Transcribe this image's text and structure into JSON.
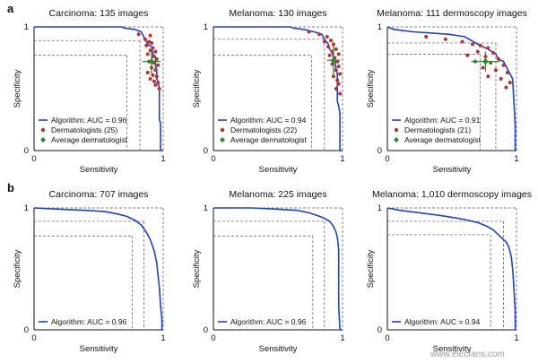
{
  "figure": {
    "row_labels": [
      "a",
      "b"
    ],
    "watermark": "www.elecfans.com"
  },
  "chart_data": [
    {
      "type": "line",
      "title": "Carcinoma: 135 images",
      "xlabel": "Sensitivity",
      "ylabel": "Specificity",
      "x_ticks": [
        "0",
        "1"
      ],
      "y_ticks": [
        "0",
        "1"
      ],
      "xlim": [
        0,
        1
      ],
      "ylim": [
        0,
        1
      ],
      "legend": {
        "position": "bottom-left",
        "algorithm": "Algorithm: AUC = 0.96",
        "dermatologists": "Dermatologists (25)",
        "average": "Average dermatologist"
      },
      "algorithm_curve": [
        [
          0,
          1
        ],
        [
          0.68,
          1
        ],
        [
          0.7,
          0.99
        ],
        [
          0.78,
          0.98
        ],
        [
          0.83,
          0.96
        ],
        [
          0.86,
          0.9
        ],
        [
          0.88,
          0.86
        ],
        [
          0.91,
          0.84
        ],
        [
          0.92,
          0.78
        ],
        [
          0.94,
          0.76
        ],
        [
          0.94,
          0.68
        ],
        [
          0.95,
          0.66
        ],
        [
          0.95,
          0.58
        ],
        [
          0.96,
          0.56
        ],
        [
          0.97,
          0.5
        ],
        [
          0.97,
          0.25
        ],
        [
          0.98,
          0.22
        ],
        [
          0.98,
          0
        ],
        [
          1,
          0
        ]
      ],
      "reference_points": [
        [
          0.72,
          0.77
        ],
        [
          0.82,
          0.89
        ]
      ],
      "dermatologists": [
        [
          0.81,
          0.94
        ],
        [
          0.9,
          0.93
        ],
        [
          0.86,
          0.9
        ],
        [
          0.89,
          0.88
        ],
        [
          0.91,
          0.87
        ],
        [
          0.87,
          0.85
        ],
        [
          0.92,
          0.83
        ],
        [
          0.9,
          0.81
        ],
        [
          0.94,
          0.8
        ],
        [
          0.88,
          0.78
        ],
        [
          0.92,
          0.76
        ],
        [
          0.95,
          0.74
        ],
        [
          0.89,
          0.72
        ],
        [
          0.93,
          0.71
        ],
        [
          0.96,
          0.69
        ],
        [
          0.91,
          0.67
        ],
        [
          0.94,
          0.65
        ],
        [
          0.88,
          0.63
        ],
        [
          0.92,
          0.61
        ],
        [
          0.95,
          0.6
        ],
        [
          0.9,
          0.58
        ],
        [
          0.93,
          0.56
        ],
        [
          0.96,
          0.55
        ],
        [
          0.94,
          0.53
        ],
        [
          0.97,
          0.5
        ]
      ],
      "average_dermatologist": {
        "x": 0.91,
        "y": 0.72,
        "x_err": 0.07,
        "y_err": 0.1
      }
    },
    {
      "type": "line",
      "title": "Melanoma: 130 images",
      "xlabel": "Sensitivity",
      "ylabel": "Specificity",
      "x_ticks": [
        "0",
        "1"
      ],
      "y_ticks": [
        "0",
        "1"
      ],
      "xlim": [
        0,
        1
      ],
      "ylim": [
        0,
        1
      ],
      "legend": {
        "position": "bottom-left",
        "algorithm": "Algorithm: AUC = 0.94",
        "dermatologists": "Dermatologists (22)",
        "average": "Average dermatologist"
      },
      "algorithm_curve": [
        [
          0,
          1
        ],
        [
          0.6,
          1
        ],
        [
          0.62,
          0.99
        ],
        [
          0.7,
          0.98
        ],
        [
          0.78,
          0.96
        ],
        [
          0.84,
          0.94
        ],
        [
          0.86,
          0.9
        ],
        [
          0.89,
          0.86
        ],
        [
          0.9,
          0.82
        ],
        [
          0.92,
          0.8
        ],
        [
          0.93,
          0.74
        ],
        [
          0.94,
          0.72
        ],
        [
          0.95,
          0.66
        ],
        [
          0.96,
          0.62
        ],
        [
          0.96,
          0.4
        ],
        [
          0.97,
          0.36
        ],
        [
          0.98,
          0.3
        ],
        [
          0.98,
          0
        ],
        [
          1,
          0
        ]
      ],
      "reference_points": [
        [
          0.76,
          0.77
        ],
        [
          0.86,
          0.9
        ]
      ],
      "dermatologists": [
        [
          0.74,
          0.96
        ],
        [
          0.82,
          0.94
        ],
        [
          0.88,
          0.92
        ],
        [
          0.91,
          0.89
        ],
        [
          0.86,
          0.88
        ],
        [
          0.93,
          0.86
        ],
        [
          0.89,
          0.84
        ],
        [
          0.95,
          0.82
        ],
        [
          0.92,
          0.8
        ],
        [
          0.97,
          0.78
        ],
        [
          0.9,
          0.77
        ],
        [
          0.94,
          0.75
        ],
        [
          0.96,
          0.72
        ],
        [
          0.92,
          0.7
        ],
        [
          0.97,
          0.68
        ],
        [
          0.95,
          0.65
        ],
        [
          0.98,
          0.62
        ],
        [
          0.93,
          0.6
        ],
        [
          0.96,
          0.57
        ],
        [
          0.97,
          0.54
        ],
        [
          0.95,
          0.5
        ],
        [
          0.98,
          0.46
        ]
      ],
      "average_dermatologist": {
        "x": 0.93,
        "y": 0.73,
        "x_err": 0.05,
        "y_err": 0.12
      }
    },
    {
      "type": "line",
      "title": "Melanoma: 111 dermoscopy images",
      "xlabel": "Sensitivity",
      "ylabel": "Specificity",
      "x_ticks": [
        "0",
        "1"
      ],
      "y_ticks": [
        "0",
        "1"
      ],
      "xlim": [
        0,
        1
      ],
      "ylim": [
        0,
        1
      ],
      "legend": {
        "position": "bottom-left",
        "algorithm": "Algorithm: AUC = 0.91",
        "dermatologists": "Dermatologists (21)",
        "average": "Average dermatologist"
      },
      "algorithm_curve": [
        [
          0,
          1
        ],
        [
          0.05,
          0.98
        ],
        [
          0.2,
          0.96
        ],
        [
          0.35,
          0.95
        ],
        [
          0.48,
          0.94
        ],
        [
          0.6,
          0.92
        ],
        [
          0.7,
          0.86
        ],
        [
          0.78,
          0.82
        ],
        [
          0.84,
          0.78
        ],
        [
          0.86,
          0.74
        ],
        [
          0.9,
          0.72
        ],
        [
          0.92,
          0.68
        ],
        [
          0.95,
          0.62
        ],
        [
          0.97,
          0.58
        ],
        [
          0.98,
          0.4
        ],
        [
          0.99,
          0.2
        ],
        [
          0.99,
          0
        ],
        [
          1,
          0
        ]
      ],
      "reference_points": [
        [
          0.72,
          0.78
        ],
        [
          0.84,
          0.87
        ]
      ],
      "dermatologists": [
        [
          0.3,
          0.92
        ],
        [
          0.45,
          0.9
        ],
        [
          0.58,
          0.88
        ],
        [
          0.66,
          0.86
        ],
        [
          0.72,
          0.85
        ],
        [
          0.78,
          0.83
        ],
        [
          0.7,
          0.8
        ],
        [
          0.82,
          0.79
        ],
        [
          0.62,
          0.77
        ],
        [
          0.76,
          0.76
        ],
        [
          0.86,
          0.74
        ],
        [
          0.68,
          0.72
        ],
        [
          0.8,
          0.71
        ],
        [
          0.9,
          0.69
        ],
        [
          0.74,
          0.67
        ],
        [
          0.84,
          0.65
        ],
        [
          0.93,
          0.63
        ],
        [
          0.78,
          0.6
        ],
        [
          0.88,
          0.58
        ],
        [
          0.95,
          0.55
        ],
        [
          0.92,
          0.51
        ]
      ],
      "average_dermatologist": {
        "x": 0.76,
        "y": 0.72,
        "x_err": 0.11,
        "y_err": 0.08
      }
    },
    {
      "type": "line",
      "title": "Carcinoma: 707 images",
      "xlabel": "Sensitivity",
      "ylabel": "Specificity",
      "x_ticks": [
        "0",
        "1"
      ],
      "y_ticks": [
        "0",
        "1"
      ],
      "xlim": [
        0,
        1
      ],
      "ylim": [
        0,
        1
      ],
      "legend": {
        "position": "bottom-left",
        "algorithm": "Algorithm: AUC = 0.96"
      },
      "algorithm_curve": [
        [
          0,
          1
        ],
        [
          0.2,
          0.99
        ],
        [
          0.4,
          0.98
        ],
        [
          0.55,
          0.97
        ],
        [
          0.65,
          0.95
        ],
        [
          0.72,
          0.93
        ],
        [
          0.78,
          0.9
        ],
        [
          0.83,
          0.86
        ],
        [
          0.87,
          0.8
        ],
        [
          0.9,
          0.74
        ],
        [
          0.93,
          0.65
        ],
        [
          0.95,
          0.55
        ],
        [
          0.96,
          0.45
        ],
        [
          0.97,
          0.35
        ],
        [
          0.98,
          0.2
        ],
        [
          0.99,
          0.08
        ],
        [
          0.99,
          0
        ],
        [
          1,
          0
        ]
      ],
      "reference_points": [
        [
          0.76,
          0.77
        ],
        [
          0.85,
          0.89
        ]
      ]
    },
    {
      "type": "line",
      "title": "Melanoma: 225 images",
      "xlabel": "Sensitivity",
      "ylabel": "Specificity",
      "x_ticks": [
        "0",
        "1"
      ],
      "y_ticks": [
        "0",
        "1"
      ],
      "xlim": [
        0,
        1
      ],
      "ylim": [
        0,
        1
      ],
      "legend": {
        "position": "bottom-left",
        "algorithm": "Algorithm: AUC = 0.96"
      },
      "algorithm_curve": [
        [
          0,
          1
        ],
        [
          0.3,
          1
        ],
        [
          0.5,
          0.99
        ],
        [
          0.65,
          0.98
        ],
        [
          0.74,
          0.96
        ],
        [
          0.8,
          0.94
        ],
        [
          0.85,
          0.92
        ],
        [
          0.9,
          0.89
        ],
        [
          0.93,
          0.85
        ],
        [
          0.95,
          0.8
        ],
        [
          0.96,
          0.76
        ],
        [
          0.97,
          0.66
        ],
        [
          0.97,
          0.2
        ],
        [
          0.98,
          0
        ],
        [
          1,
          0
        ]
      ],
      "reference_points": [
        [
          0.77,
          0.77
        ],
        [
          0.86,
          0.89
        ]
      ]
    },
    {
      "type": "line",
      "title": "Melanoma: 1,010 dermoscopy images",
      "xlabel": "Sensitivity",
      "ylabel": "Specificity",
      "x_ticks": [
        "0",
        "1"
      ],
      "y_ticks": [
        "0",
        "1"
      ],
      "xlim": [
        0,
        1
      ],
      "ylim": [
        0,
        1
      ],
      "legend": {
        "position": "bottom-left",
        "algorithm": "Algorithm: AUC = 0.94"
      },
      "algorithm_curve": [
        [
          0,
          1
        ],
        [
          0.1,
          0.98
        ],
        [
          0.25,
          0.96
        ],
        [
          0.4,
          0.94
        ],
        [
          0.52,
          0.92
        ],
        [
          0.62,
          0.9
        ],
        [
          0.7,
          0.88
        ],
        [
          0.77,
          0.85
        ],
        [
          0.82,
          0.82
        ],
        [
          0.86,
          0.78
        ],
        [
          0.89,
          0.75
        ],
        [
          0.92,
          0.72
        ],
        [
          0.94,
          0.68
        ],
        [
          0.96,
          0.6
        ],
        [
          0.97,
          0.5
        ],
        [
          0.98,
          0.35
        ],
        [
          0.99,
          0.15
        ],
        [
          0.99,
          0
        ],
        [
          1,
          0
        ]
      ],
      "reference_points": [
        [
          0.8,
          0.78
        ],
        [
          0.9,
          0.89
        ]
      ]
    }
  ],
  "colors": {
    "curve": "#1f3fcf",
    "dermatologist": "#b8312f",
    "average": "#2f8a2f",
    "axis": "#111111",
    "guide": "#555555"
  }
}
